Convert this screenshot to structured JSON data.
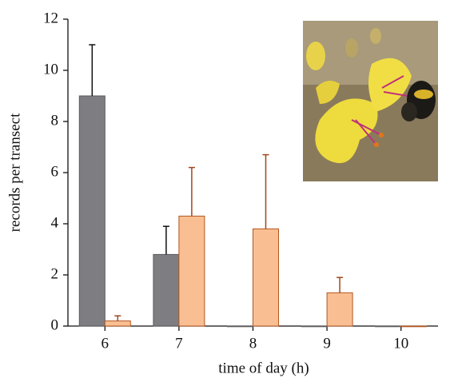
{
  "chart_data": {
    "type": "bar",
    "x_label": "time of day (h)",
    "y_label": "records per transect",
    "categories": [
      "6",
      "7",
      "8",
      "9",
      "10"
    ],
    "series": [
      {
        "color": "#7e7e82",
        "edge_color": "#5a5a5e",
        "error_color": "#111111",
        "values": [
          9.0,
          2.8,
          0,
          0,
          0
        ],
        "errors": [
          2.0,
          1.1,
          0,
          0,
          0
        ]
      },
      {
        "color": "#f9bf92",
        "edge_color": "#b5561f",
        "error_color": "#a0461c",
        "values": [
          0.2,
          4.3,
          3.8,
          1.3,
          0
        ],
        "errors": [
          0.2,
          1.9,
          2.9,
          0.6,
          0
        ]
      }
    ],
    "ylim": [
      0,
      12
    ],
    "yticks": [
      0,
      2,
      4,
      6,
      8,
      10,
      12
    ],
    "grid": false
  }
}
